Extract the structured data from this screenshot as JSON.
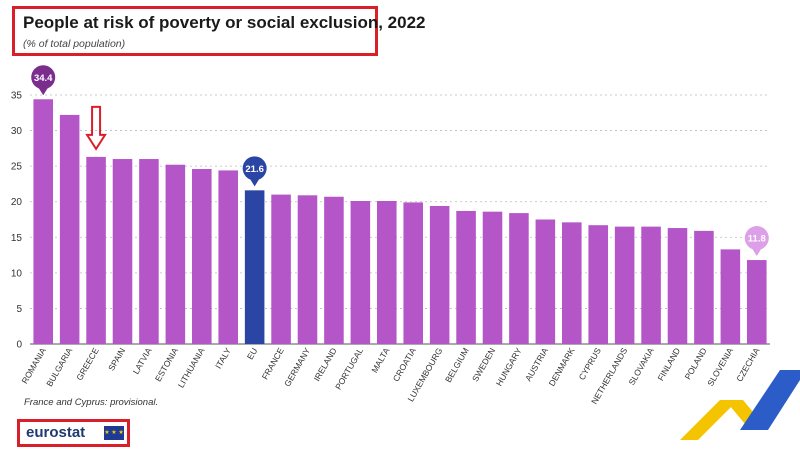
{
  "header": {
    "title": "People at risk of poverty or social exclusion, 2022",
    "subtitle": "(% of total population)"
  },
  "footnote": "France and Cyprus: provisional.",
  "logo": {
    "text": "eurostat",
    "flag_icon": "eu-flag-icon"
  },
  "colors": {
    "bar": "#b456c8",
    "bar_highlight": "#2b45a4",
    "max_badge": "#7b2d8e",
    "eu_badge": "#2b45a4",
    "min_badge": "#dda0e8",
    "annotation": "#d9202a",
    "grid": "#bbbbbb"
  },
  "chart_data": {
    "type": "bar",
    "title": "People at risk of poverty or social exclusion, 2022",
    "subtitle": "(% of total population)",
    "categories": [
      "ROMANIA",
      "BULGARIA",
      "GREECE",
      "SPAIN",
      "LATVIA",
      "ESTONIA",
      "LITHUANIA",
      "ITALY",
      "EU",
      "FRANCE",
      "GERMANY",
      "IRELAND",
      "PORTUGAL",
      "MALTA",
      "CROATIA",
      "LUXEMBOURG",
      "BELGIUM",
      "SWEDEN",
      "HUNGARY",
      "AUSTRIA",
      "DENMARK",
      "CYPRUS",
      "NETHERLANDS",
      "SLOVAKIA",
      "FINLAND",
      "POLAND",
      "SLOVENIA",
      "CZECHIA"
    ],
    "values": [
      34.4,
      32.2,
      26.3,
      26.0,
      26.0,
      25.2,
      24.6,
      24.4,
      21.6,
      21.0,
      20.9,
      20.7,
      20.1,
      20.1,
      19.9,
      19.4,
      18.7,
      18.6,
      18.4,
      17.5,
      17.1,
      16.7,
      16.5,
      16.5,
      16.3,
      15.9,
      13.3,
      11.8
    ],
    "highlight_category": "EU",
    "badges": [
      {
        "category": "ROMANIA",
        "label": "34.4",
        "style": "max"
      },
      {
        "category": "EU",
        "label": "21.6",
        "style": "eu"
      },
      {
        "category": "CZECHIA",
        "label": "11.8",
        "style": "min"
      }
    ],
    "annotation_arrow_category": "GREECE",
    "ylim": [
      0,
      35
    ],
    "yticks": [
      0,
      5,
      10,
      15,
      20,
      25,
      30,
      35
    ],
    "grid": true,
    "legend": "none"
  }
}
